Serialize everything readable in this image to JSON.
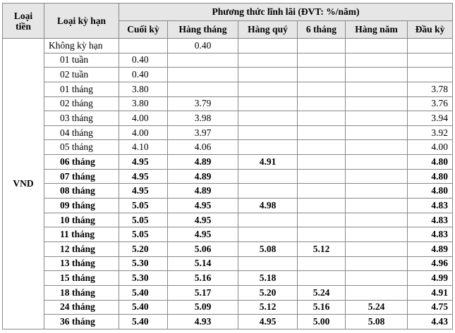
{
  "table": {
    "headers": {
      "currency": "Loại tiền",
      "term": "Loại kỳ hạn",
      "method": "Phương thức lĩnh lãi (ĐVT: %/năm)",
      "columns": [
        "Cuối kỳ",
        "Hàng tháng",
        "Hàng quý",
        "6 tháng",
        "Hàng năm",
        "Đầu kỳ"
      ]
    },
    "currency": "VND",
    "rows": [
      {
        "term": "Không kỳ hạn",
        "values": [
          null,
          "0.40",
          null,
          null,
          null,
          null
        ]
      },
      {
        "term": "01 tuần",
        "values": [
          "0.40",
          null,
          null,
          null,
          null,
          null
        ]
      },
      {
        "term": "02 tuần",
        "values": [
          "0.40",
          null,
          null,
          null,
          null,
          null
        ]
      },
      {
        "term": "01 tháng",
        "values": [
          "3.80",
          null,
          null,
          null,
          null,
          "3.78"
        ]
      },
      {
        "term": "02 tháng",
        "values": [
          "3.80",
          "3.79",
          null,
          null,
          null,
          "3.76"
        ]
      },
      {
        "term": "03 tháng",
        "values": [
          "4.00",
          "3.98",
          null,
          null,
          null,
          "3.94"
        ]
      },
      {
        "term": "04 tháng",
        "values": [
          "4.00",
          "3.97",
          null,
          null,
          null,
          "3.92"
        ]
      },
      {
        "term": "05 tháng",
        "values": [
          "4.10",
          "4.06",
          null,
          null,
          null,
          "4.00"
        ]
      },
      {
        "term": "06 tháng",
        "values": [
          "4.95",
          "4.89",
          "4.91",
          null,
          null,
          "4.80"
        ]
      },
      {
        "term": "07 tháng",
        "values": [
          "4.95",
          "4.89",
          null,
          null,
          null,
          "4.80"
        ]
      },
      {
        "term": "08 tháng",
        "values": [
          "4.95",
          "4.89",
          null,
          null,
          null,
          "4.80"
        ]
      },
      {
        "term": "09 tháng",
        "values": [
          "5.05",
          "4.95",
          "4.98",
          null,
          null,
          "4.83"
        ]
      },
      {
        "term": "10 tháng",
        "values": [
          "5.05",
          "4.95",
          null,
          null,
          null,
          "4.83"
        ]
      },
      {
        "term": "11 tháng",
        "values": [
          "5.05",
          "4.95",
          null,
          null,
          null,
          "4.83"
        ]
      },
      {
        "term": "12 tháng",
        "values": [
          "5.20",
          "5.06",
          "5.08",
          "5.12",
          null,
          "4.89"
        ]
      },
      {
        "term": "13 tháng",
        "values": [
          "5.30",
          "5.14",
          null,
          null,
          null,
          "4.96"
        ]
      },
      {
        "term": "15 tháng",
        "values": [
          "5.30",
          "5.16",
          "5.18",
          null,
          null,
          "4.99"
        ]
      },
      {
        "term": "18 tháng",
        "values": [
          "5.40",
          "5.17",
          "5.20",
          "5.24",
          null,
          "4.91"
        ]
      },
      {
        "term": "24 tháng",
        "values": [
          "5.40",
          "5.09",
          "5.12",
          "5.16",
          "5.24",
          "4.75"
        ]
      },
      {
        "term": "36 tháng",
        "values": [
          "5.40",
          "4.93",
          "4.95",
          "5.00",
          "5.08",
          "4.43"
        ]
      }
    ]
  }
}
